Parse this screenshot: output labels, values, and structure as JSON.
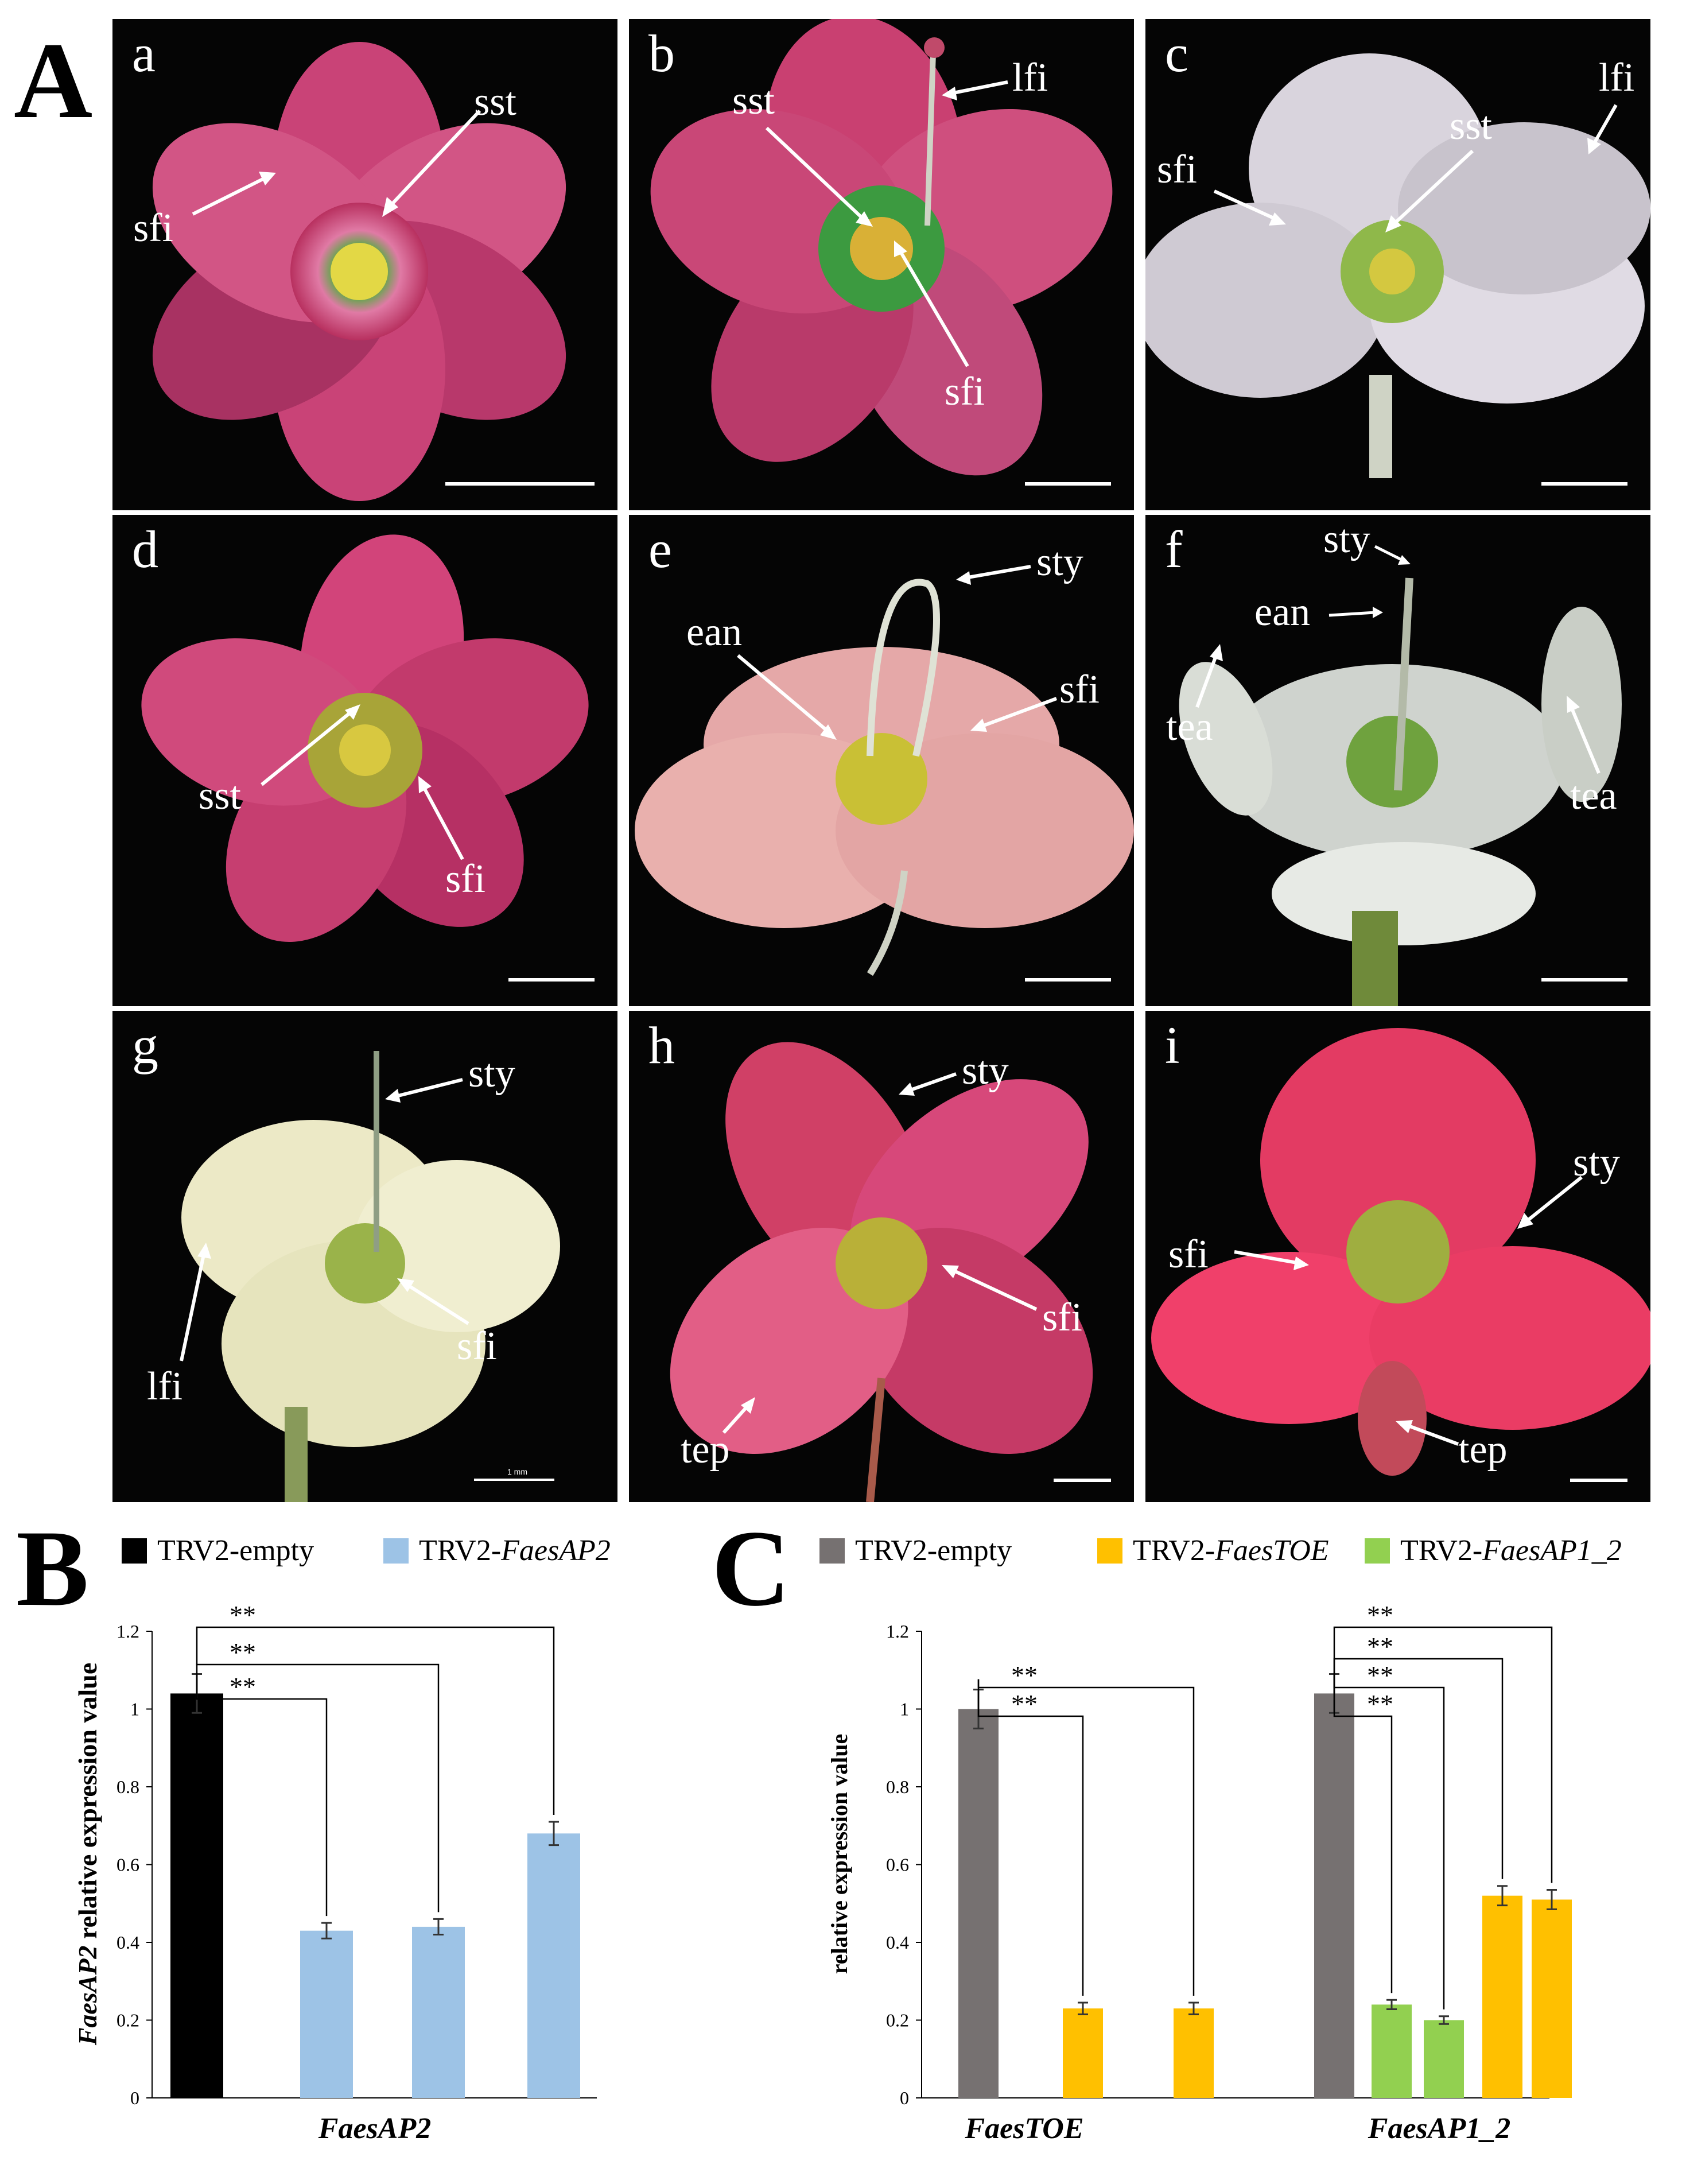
{
  "panel_A": {
    "letter": "A",
    "photos": [
      {
        "id": "a",
        "labels": [
          "sfi",
          "sst"
        ]
      },
      {
        "id": "b",
        "labels": [
          "sst",
          "lfi",
          "sfi"
        ]
      },
      {
        "id": "c",
        "labels": [
          "sfi",
          "sst",
          "lfi"
        ]
      },
      {
        "id": "d",
        "labels": [
          "sst",
          "sfi"
        ]
      },
      {
        "id": "e",
        "labels": [
          "sty",
          "ean",
          "sfi"
        ]
      },
      {
        "id": "f",
        "labels": [
          "sty",
          "ean",
          "tea",
          "tea"
        ]
      },
      {
        "id": "g",
        "labels": [
          "sty",
          "lfi",
          "sfi"
        ],
        "scale_text": "1 mm"
      },
      {
        "id": "h",
        "labels": [
          "sty",
          "sfi",
          "tep"
        ]
      },
      {
        "id": "i",
        "labels": [
          "sty",
          "sfi",
          "tep"
        ]
      }
    ]
  },
  "panel_B": {
    "letter": "B",
    "legend": [
      {
        "name": "TRV2-empty",
        "color": "#000000"
      },
      {
        "prefix": "TRV2-",
        "italic": "FaesAP2",
        "color": "#9dc3e6"
      }
    ],
    "ylabel_italic": "FaesAP2",
    "ylabel_rest": " relative expression value",
    "sig": "**"
  },
  "panel_C": {
    "letter": "C",
    "legend": [
      {
        "name": "TRV2-empty",
        "color": "#767171"
      },
      {
        "prefix": "TRV2-",
        "italic": "FaesTOE",
        "color": "#ffc000"
      },
      {
        "prefix": "TRV2-",
        "italic": "FaesAP1_2",
        "color": "#92d050"
      }
    ],
    "ylabel": "relative expression value",
    "sig": "**"
  },
  "chart_data": [
    {
      "type": "bar",
      "panel": "B",
      "ylabel": "FaesAP2 relative expression value",
      "ylim": [
        0,
        1.2
      ],
      "yticks": [
        "0",
        "0.2",
        "0.4",
        "0.6",
        "0.8",
        "1",
        "1.2"
      ],
      "categories": [
        "FaesAP2"
      ],
      "bars": [
        {
          "group": "FaesAP2",
          "series": "TRV2-empty",
          "value": 1.04,
          "error": 0.05,
          "color": "#000000"
        },
        {
          "group": "FaesAP2",
          "series": "TRV2-FaesAP2",
          "value": 0.43,
          "error": 0.02,
          "color": "#9dc3e6"
        },
        {
          "group": "FaesAP2",
          "series": "TRV2-FaesAP2",
          "value": 0.44,
          "error": 0.02,
          "color": "#9dc3e6"
        },
        {
          "group": "FaesAP2",
          "series": "TRV2-FaesAP2",
          "value": 0.68,
          "error": 0.03,
          "color": "#9dc3e6"
        }
      ],
      "comparisons": [
        {
          "from": 0,
          "to": 1,
          "label": "**"
        },
        {
          "from": 0,
          "to": 2,
          "label": "**"
        },
        {
          "from": 0,
          "to": 3,
          "label": "**"
        }
      ]
    },
    {
      "type": "bar",
      "panel": "C",
      "ylabel": "relative expression value",
      "ylim": [
        0,
        1.2
      ],
      "yticks": [
        "0",
        "0.2",
        "0.4",
        "0.6",
        "0.8",
        "1",
        "1.2"
      ],
      "categories": [
        "FaesTOE",
        "FaesAP1_2"
      ],
      "bars": [
        {
          "group": "FaesTOE",
          "series": "TRV2-empty",
          "value": 1.0,
          "error": 0.05,
          "color": "#767171"
        },
        {
          "group": "FaesTOE",
          "series": "TRV2-FaesTOE",
          "value": 0.23,
          "error": 0.015,
          "color": "#ffc000"
        },
        {
          "group": "FaesTOE",
          "series": "TRV2-FaesTOE",
          "value": 0.23,
          "error": 0.015,
          "color": "#ffc000"
        },
        {
          "group": "FaesAP1_2",
          "series": "TRV2-empty",
          "value": 1.04,
          "error": 0.05,
          "color": "#767171"
        },
        {
          "group": "FaesAP1_2",
          "series": "TRV2-FaesAP1_2",
          "value": 0.24,
          "error": 0.012,
          "color": "#92d050"
        },
        {
          "group": "FaesAP1_2",
          "series": "TRV2-FaesAP1_2",
          "value": 0.2,
          "error": 0.01,
          "color": "#92d050"
        },
        {
          "group": "FaesAP1_2",
          "series": "TRV2-FaesTOE",
          "value": 0.52,
          "error": 0.025,
          "color": "#ffc000"
        },
        {
          "group": "FaesAP1_2",
          "series": "TRV2-FaesTOE",
          "value": 0.51,
          "error": 0.025,
          "color": "#ffc000"
        }
      ],
      "comparisons": [
        {
          "from": 0,
          "to": 1,
          "label": "**"
        },
        {
          "from": 0,
          "to": 2,
          "label": "**"
        },
        {
          "from": 3,
          "to": 4,
          "label": "**"
        },
        {
          "from": 3,
          "to": 5,
          "label": "**"
        },
        {
          "from": 3,
          "to": 6,
          "label": "**"
        },
        {
          "from": 3,
          "to": 7,
          "label": "**"
        }
      ]
    }
  ]
}
